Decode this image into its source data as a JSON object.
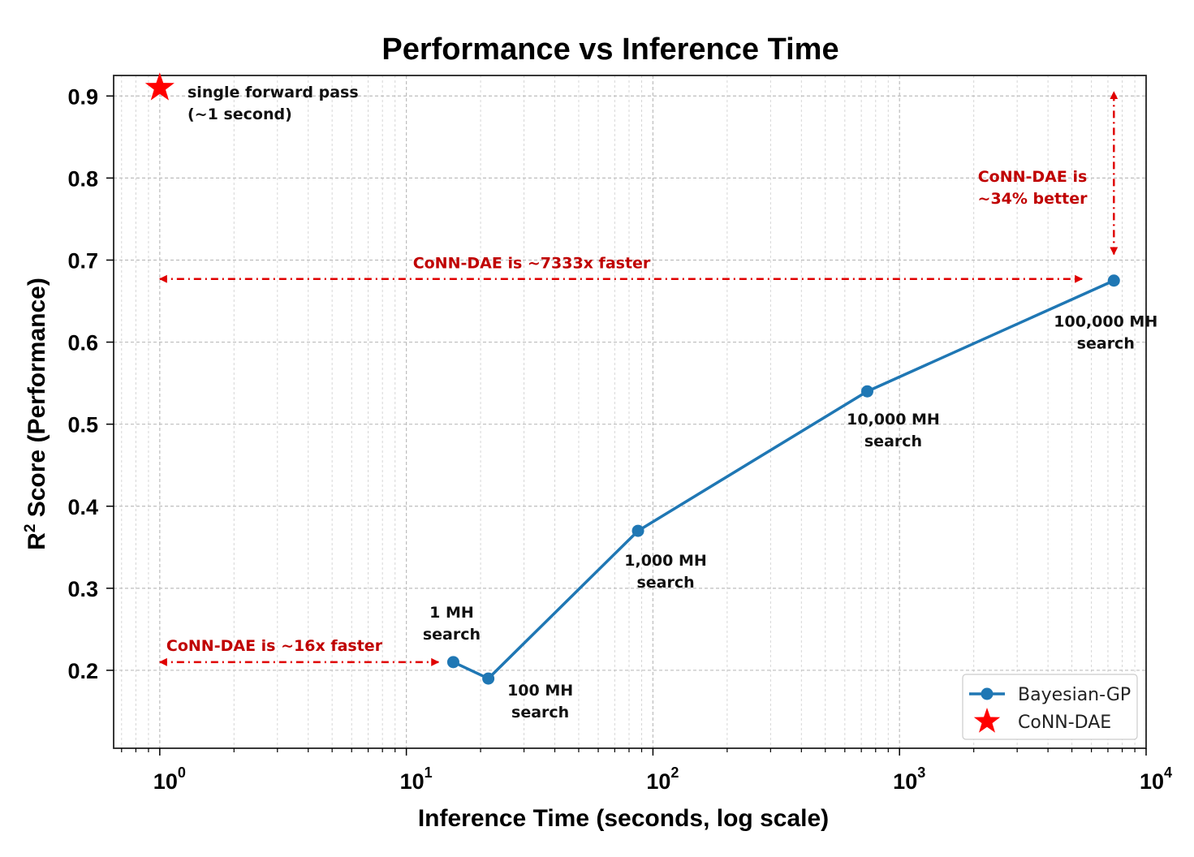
{
  "chart_data": {
    "type": "line",
    "title": "Performance vs Inference Time",
    "xlabel": "Inference Time (seconds, log scale)",
    "ylabel_main": "R",
    "ylabel_sup": "2",
    "ylabel_rest": " Score (Performance)",
    "x_scale": "log",
    "xlim": [
      0.65,
      10000
    ],
    "ylim": [
      0.105,
      0.925
    ],
    "grid": true,
    "x_ticks": [
      {
        "value": 1,
        "base": "10",
        "exp": "0"
      },
      {
        "value": 10,
        "base": "10",
        "exp": "1"
      },
      {
        "value": 100,
        "base": "10",
        "exp": "2"
      },
      {
        "value": 1000,
        "base": "10",
        "exp": "3"
      },
      {
        "value": 10000,
        "base": "10",
        "exp": "4"
      }
    ],
    "y_ticks": [
      {
        "value": 0.2,
        "label": "0.2"
      },
      {
        "value": 0.3,
        "label": "0.3"
      },
      {
        "value": 0.4,
        "label": "0.4"
      },
      {
        "value": 0.5,
        "label": "0.5"
      },
      {
        "value": 0.6,
        "label": "0.6"
      },
      {
        "value": 0.7,
        "label": "0.7"
      },
      {
        "value": 0.8,
        "label": "0.8"
      },
      {
        "value": 0.9,
        "label": "0.9"
      }
    ],
    "series": [
      {
        "name": "Bayesian-GP",
        "color": "#1f77b4",
        "marker": "circle",
        "points": [
          {
            "x": 15.5,
            "y": 0.21,
            "label1": "1 MH",
            "label2": "search"
          },
          {
            "x": 21.5,
            "y": 0.19,
            "label1": "100 MH",
            "label2": "search"
          },
          {
            "x": 87,
            "y": 0.37,
            "label1": "1,000 MH",
            "label2": "search"
          },
          {
            "x": 740,
            "y": 0.54,
            "label1": "10,000 MH",
            "label2": "search"
          },
          {
            "x": 7400,
            "y": 0.675,
            "label1": "100,000 MH",
            "label2": "search"
          }
        ]
      },
      {
        "name": "CoNN-DAE",
        "color": "#ff0000",
        "marker": "star",
        "points": [
          {
            "x": 1.0,
            "y": 0.907,
            "label1": "single forward pass",
            "label2": "(~1 second)"
          }
        ]
      }
    ],
    "annotations": [
      {
        "text": "CoNN-DAE is ~7333x faster",
        "arrow_x": [
          1.0,
          5500
        ],
        "arrow_y": 0.677
      },
      {
        "text": "CoNN-DAE is ~16x faster",
        "arrow_x": [
          1.0,
          13.5
        ],
        "arrow_y": 0.21
      },
      {
        "text1": "CoNN-DAE is",
        "text2": "~34% better",
        "arrow_x": 7400,
        "arrow_y": [
          0.707,
          0.905
        ]
      }
    ],
    "legend": {
      "position": "lower-right",
      "entries": [
        "Bayesian-GP",
        "CoNN-DAE"
      ]
    },
    "annotation_color": "#e00000"
  }
}
